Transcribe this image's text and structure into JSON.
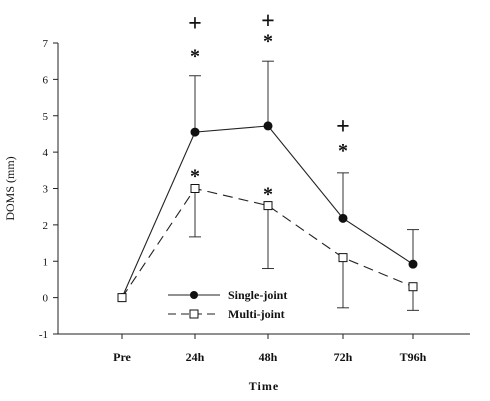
{
  "chart_data": {
    "type": "line",
    "title": "",
    "xlabel": "Time",
    "ylabel": "DOMS (mm)",
    "categories": [
      "Pre",
      "24h",
      "48h",
      "72h",
      "T96h"
    ],
    "ylim": [
      -1,
      7
    ],
    "yticks": [
      "-1",
      "0",
      "1",
      "2",
      "3",
      "4",
      "5",
      "6",
      "7"
    ],
    "grid": false,
    "legend_position": "bottom-left",
    "series": [
      {
        "name": "Single-joint",
        "marker": "filled-circle",
        "line_style": "solid",
        "values": [
          0,
          4.55,
          4.72,
          2.18,
          0.92
        ],
        "error_upper": [
          0,
          1.55,
          1.78,
          1.25,
          0.95
        ],
        "error_lower": [
          0,
          0,
          0,
          0,
          0
        ]
      },
      {
        "name": "Multi-joint",
        "marker": "open-square",
        "line_style": "dashed",
        "values": [
          0,
          3.0,
          2.53,
          1.1,
          0.3
        ],
        "error_upper": [
          0,
          0,
          0,
          0,
          0
        ],
        "error_lower": [
          0,
          1.33,
          1.73,
          1.38,
          0.65
        ]
      }
    ],
    "annotations": [
      {
        "text": "+",
        "category": "24h",
        "y": 7.55
      },
      {
        "text": "*",
        "category": "24h",
        "y": 6.8
      },
      {
        "text": "*",
        "category": "24h",
        "y": 3.5
      },
      {
        "text": "+",
        "category": "48h",
        "y": 7.62
      },
      {
        "text": "*",
        "category": "48h",
        "y": 7.2
      },
      {
        "text": "*",
        "category": "48h",
        "y": 3.0
      },
      {
        "text": "+",
        "category": "72h",
        "y": 4.72
      },
      {
        "text": "*",
        "category": "72h",
        "y": 4.2
      }
    ]
  }
}
